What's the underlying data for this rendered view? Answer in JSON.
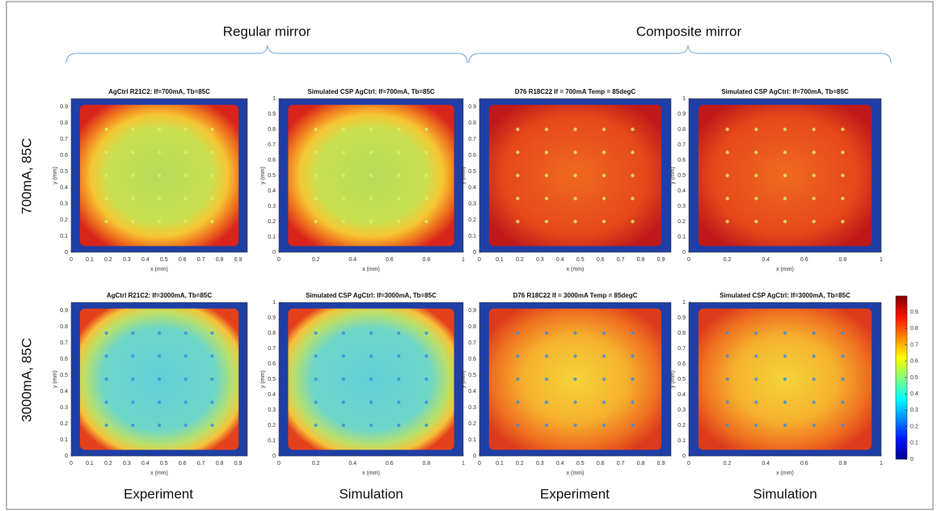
{
  "groups": [
    "Regular mirror",
    "Composite mirror"
  ],
  "rows": [
    "700mA, 85C",
    "3000mA, 85C"
  ],
  "columns": [
    "Experiment",
    "Simulation",
    "Experiment",
    "Simulation"
  ],
  "panels": [
    {
      "title": "AgCtrl R21C2: If=700mA, Tb=85C",
      "xlabel": "x (mm)",
      "ylabel": "y (mm)",
      "xlim": [
        0,
        0.95
      ],
      "ylim": [
        0,
        0.95
      ],
      "xticks": [
        0,
        0.1,
        0.2,
        0.3,
        0.4,
        0.5,
        0.6,
        0.7,
        0.8,
        0.9
      ],
      "yticks": [
        0,
        0.1,
        0.2,
        0.3,
        0.4,
        0.5,
        0.6,
        0.7,
        0.8,
        0.9
      ]
    },
    {
      "title": "Simulated CSP AgCtrl: If=700mA, Tb=85C",
      "xlabel": "x (mm)",
      "ylabel": "y (mm)",
      "xlim": [
        0,
        1
      ],
      "ylim": [
        0,
        1
      ],
      "xticks": [
        0,
        0.2,
        0.4,
        0.6,
        0.8,
        1
      ],
      "yticks": [
        0,
        0.1,
        0.2,
        0.3,
        0.4,
        0.5,
        0.6,
        0.7,
        0.8,
        0.9,
        1
      ]
    },
    {
      "title": "D76 R18C22 If = 700mA Temp = 85degC",
      "xlabel": "x (mm)",
      "ylabel": "y (mm)",
      "xlim": [
        0,
        0.95
      ],
      "ylim": [
        0,
        0.95
      ],
      "xticks": [
        0,
        0.1,
        0.2,
        0.3,
        0.4,
        0.5,
        0.6,
        0.7,
        0.8,
        0.9
      ],
      "yticks": [
        0,
        0.1,
        0.2,
        0.3,
        0.4,
        0.5,
        0.6,
        0.7,
        0.8,
        0.9
      ]
    },
    {
      "title": "Simulated CSP AgCtrl: If=700mA, Tb=85C",
      "xlabel": "x (mm)",
      "ylabel": "y (mm)",
      "xlim": [
        0,
        1
      ],
      "ylim": [
        0,
        1
      ],
      "xticks": [
        0,
        0.2,
        0.4,
        0.6,
        0.8,
        1
      ],
      "yticks": [
        0,
        0.1,
        0.2,
        0.3,
        0.4,
        0.5,
        0.6,
        0.7,
        0.8,
        0.9,
        1
      ]
    },
    {
      "title": "AgCtrl R21C2: If=3000mA, Tb=85C",
      "xlabel": "x (mm)",
      "ylabel": "y (mm)",
      "xlim": [
        0,
        0.95
      ],
      "ylim": [
        0,
        0.95
      ],
      "xticks": [
        0,
        0.1,
        0.2,
        0.3,
        0.4,
        0.5,
        0.6,
        0.7,
        0.8,
        0.9
      ],
      "yticks": [
        0,
        0.1,
        0.2,
        0.3,
        0.4,
        0.5,
        0.6,
        0.7,
        0.8,
        0.9
      ]
    },
    {
      "title": "Simulated CSP AgCtrl: If=3000mA, Tb=85C",
      "xlabel": "x (mm)",
      "ylabel": "y (mm)",
      "xlim": [
        0,
        1
      ],
      "ylim": [
        0,
        1
      ],
      "xticks": [
        0,
        0.2,
        0.4,
        0.6,
        0.8,
        1
      ],
      "yticks": [
        0,
        0.1,
        0.2,
        0.3,
        0.4,
        0.5,
        0.6,
        0.7,
        0.8,
        0.9,
        1
      ]
    },
    {
      "title": "D76 R18C22 If = 3000mA Temp = 85degC",
      "xlabel": "x (mm)",
      "ylabel": "y (mm)",
      "xlim": [
        0,
        0.95
      ],
      "ylim": [
        0,
        0.95
      ],
      "xticks": [
        0,
        0.1,
        0.2,
        0.3,
        0.4,
        0.5,
        0.6,
        0.7,
        0.8,
        0.9
      ],
      "yticks": [
        0,
        0.1,
        0.2,
        0.3,
        0.4,
        0.5,
        0.6,
        0.7,
        0.8,
        0.9
      ]
    },
    {
      "title": "Simulated CSP AgCtrl: If=3000mA, Tb=85C",
      "xlabel": "x (mm)",
      "ylabel": "y (mm)",
      "xlim": [
        0,
        1
      ],
      "ylim": [
        0,
        1
      ],
      "xticks": [
        0,
        0.2,
        0.4,
        0.6,
        0.8,
        1
      ],
      "yticks": [
        0,
        0.1,
        0.2,
        0.3,
        0.4,
        0.5,
        0.6,
        0.7,
        0.8,
        0.9,
        1
      ]
    }
  ],
  "colorbar": {
    "lim": [
      0,
      1
    ],
    "ticks": [
      0,
      0.1,
      0.2,
      0.3,
      0.4,
      0.5,
      0.6,
      0.7,
      0.8,
      0.9
    ]
  }
}
